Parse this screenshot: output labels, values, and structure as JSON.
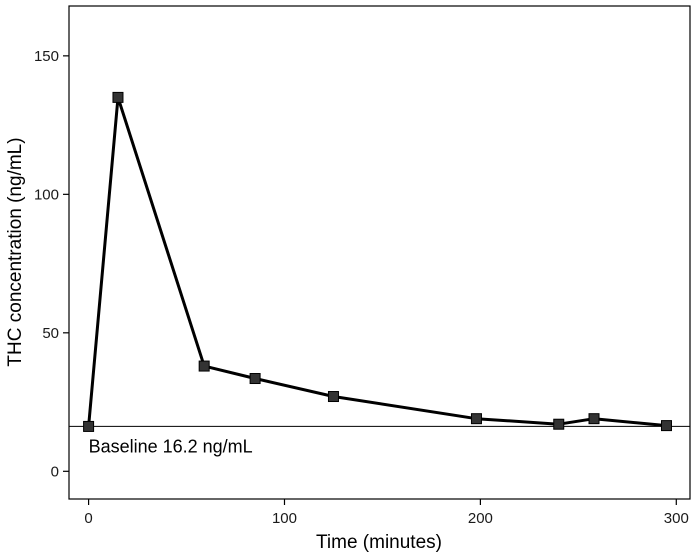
{
  "chart_data": {
    "type": "line",
    "title": "",
    "xlabel": "Time (minutes)",
    "ylabel": "THC concentration (ng/mL)",
    "xlim": [
      -10,
      307
    ],
    "ylim": [
      -10,
      168
    ],
    "xticks": [
      0,
      100,
      200,
      300
    ],
    "yticks": [
      0,
      50,
      100,
      150
    ],
    "grid": false,
    "series": [
      {
        "x": [
          0,
          15,
          59,
          85,
          125,
          198,
          240,
          258,
          295
        ],
        "y": [
          16.2,
          135,
          38,
          33.5,
          27,
          19,
          17,
          19,
          16.5
        ],
        "marker": "square",
        "color": "#000000"
      }
    ],
    "reference_line": {
      "y": 16.2,
      "label": "Baseline 16.2 ng/mL"
    }
  }
}
